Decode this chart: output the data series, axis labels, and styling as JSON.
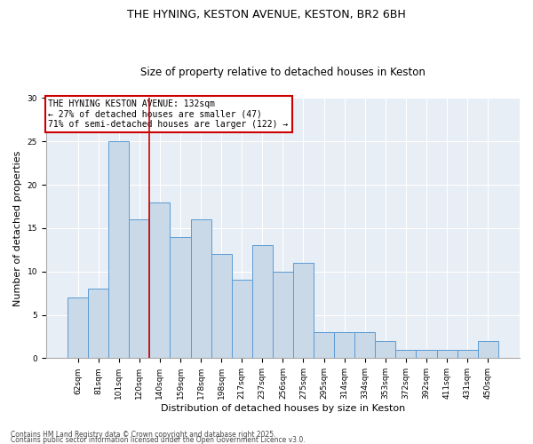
{
  "title1": "THE HYNING, KESTON AVENUE, KESTON, BR2 6BH",
  "title2": "Size of property relative to detached houses in Keston",
  "xlabel": "Distribution of detached houses by size in Keston",
  "ylabel": "Number of detached properties",
  "categories": [
    "62sqm",
    "81sqm",
    "101sqm",
    "120sqm",
    "140sqm",
    "159sqm",
    "178sqm",
    "198sqm",
    "217sqm",
    "237sqm",
    "256sqm",
    "275sqm",
    "295sqm",
    "314sqm",
    "334sqm",
    "353sqm",
    "372sqm",
    "392sqm",
    "411sqm",
    "431sqm",
    "450sqm"
  ],
  "values": [
    7,
    8,
    25,
    16,
    18,
    14,
    16,
    12,
    9,
    13,
    10,
    11,
    3,
    3,
    3,
    2,
    1,
    1,
    1,
    1,
    2
  ],
  "bar_color": "#c9d9e8",
  "bar_edge_color": "#5b9bd5",
  "vline_color": "#cc0000",
  "annotation_text": "THE HYNING KESTON AVENUE: 132sqm\n← 27% of detached houses are smaller (47)\n71% of semi-detached houses are larger (122) →",
  "annotation_box_color": "#cc0000",
  "ylim": [
    0,
    30
  ],
  "yticks": [
    0,
    5,
    10,
    15,
    20,
    25,
    30
  ],
  "footnote1": "Contains HM Land Registry data © Crown copyright and database right 2025.",
  "footnote2": "Contains public sector information licensed under the Open Government Licence v3.0.",
  "bg_color": "#e8eef5",
  "title_fontsize": 9,
  "subtitle_fontsize": 8.5,
  "tick_fontsize": 6.5,
  "label_fontsize": 8,
  "annotation_fontsize": 7,
  "footnote_fontsize": 5.5
}
